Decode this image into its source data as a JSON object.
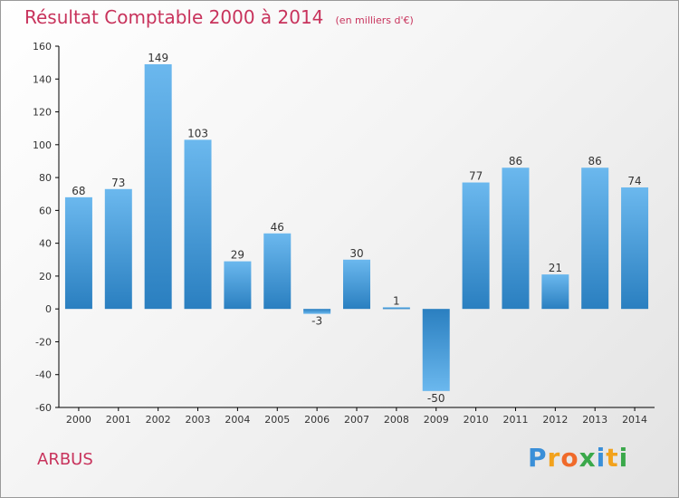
{
  "chart_data": {
    "type": "bar",
    "title": "Résultat Comptable 2000 à 2014",
    "subtitle": "(en milliers d'€)",
    "categories": [
      "2000",
      "2001",
      "2002",
      "2003",
      "2004",
      "2005",
      "2006",
      "2007",
      "2008",
      "2009",
      "2010",
      "2011",
      "2012",
      "2013",
      "2014"
    ],
    "values": [
      68,
      73,
      149,
      103,
      29,
      46,
      -3,
      30,
      1,
      -50,
      77,
      86,
      21,
      86,
      74
    ],
    "ylim": [
      -60,
      160
    ],
    "yticks": [
      -60,
      -40,
      -20,
      0,
      20,
      40,
      60,
      80,
      100,
      120,
      140,
      160
    ],
    "xlabel": "",
    "ylabel": "",
    "grid": false,
    "colors": {
      "bar_light": "#6bb8ee",
      "bar_dark": "#2a7fc0",
      "text": "#333333",
      "axis": "#000000"
    }
  },
  "footer": {
    "commune": "ARBUS",
    "logo": {
      "letters": [
        "P",
        "r",
        "o",
        "x",
        "i",
        "t",
        "i"
      ],
      "colors": [
        "#3a8fd8",
        "#f2a21c",
        "#f06a2a",
        "#3aa84a",
        "#3a8fd8",
        "#f2a21c",
        "#3aa84a"
      ]
    }
  }
}
